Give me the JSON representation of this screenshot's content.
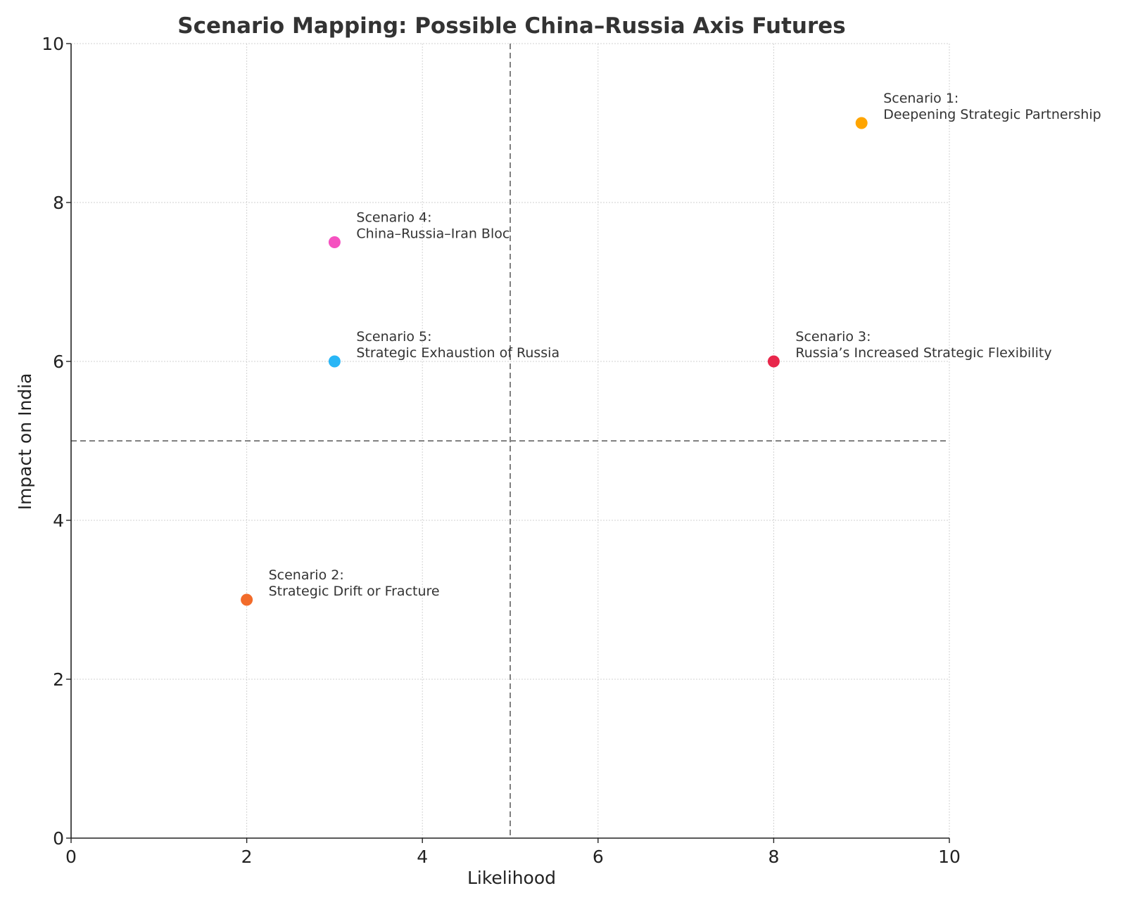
{
  "chart_data": {
    "type": "scatter",
    "title": "Scenario Mapping: Possible China–Russia Axis Futures",
    "xlabel": "Likelihood",
    "ylabel": "Impact on India",
    "xlim": [
      0,
      10
    ],
    "ylim": [
      0,
      10
    ],
    "xticks": [
      0,
      2,
      4,
      6,
      8,
      10
    ],
    "yticks": [
      0,
      2,
      4,
      6,
      8,
      10
    ],
    "grid": true,
    "reference_lines": {
      "x": 5,
      "y": 5
    },
    "points": [
      {
        "label_line1": "Scenario 1:",
        "label_line2": "Deepening Strategic Partnership",
        "x": 9,
        "y": 9,
        "color": "#FFA500"
      },
      {
        "label_line1": "Scenario 2:",
        "label_line2": "Strategic Drift or Fracture",
        "x": 2,
        "y": 3,
        "color": "#F26B2A"
      },
      {
        "label_line1": "Scenario 3:",
        "label_line2": "Russia’s Increased Strategic Flexibility",
        "x": 8,
        "y": 6,
        "color": "#E8274B"
      },
      {
        "label_line1": "Scenario 4:",
        "label_line2": "China–Russia–Iran Bloc",
        "x": 3,
        "y": 7.5,
        "color": "#F552C0"
      },
      {
        "label_line1": "Scenario 5:",
        "label_line2": "Strategic Exhaustion of Russia",
        "x": 3,
        "y": 6,
        "color": "#29B6F6"
      }
    ]
  }
}
